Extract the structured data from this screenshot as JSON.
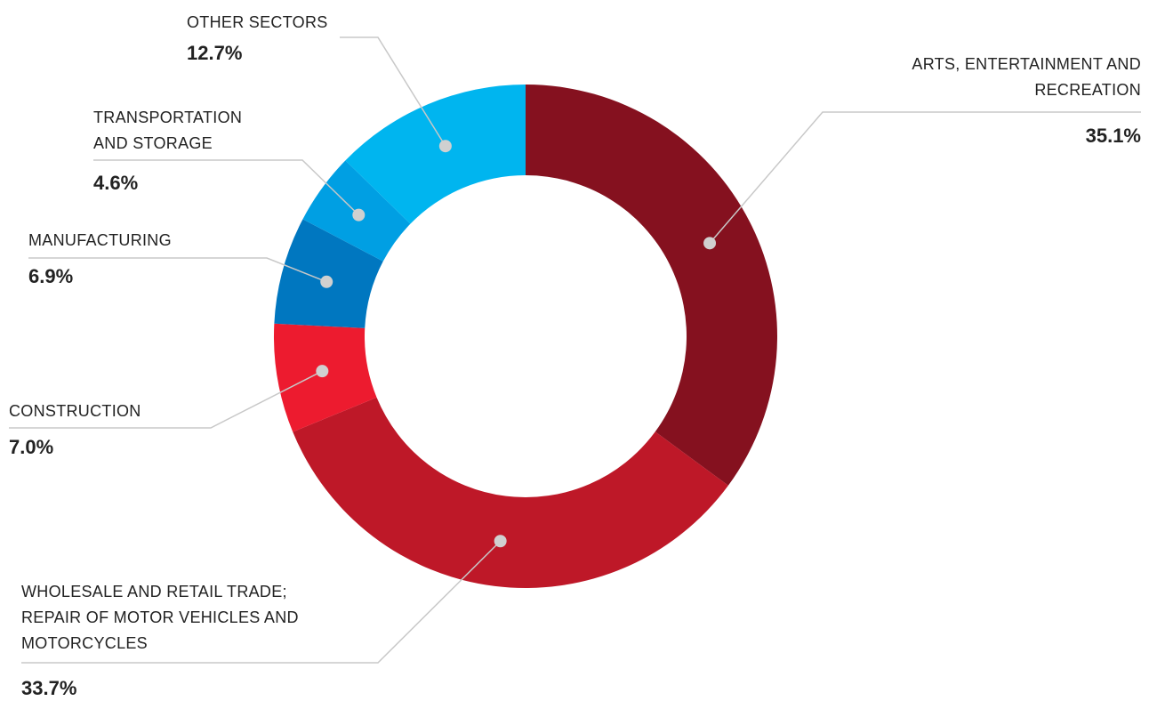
{
  "chart_data": {
    "type": "donut",
    "categories": [
      "ARTS, ENTERTAINMENT AND RECREATION",
      "WHOLESALE AND RETAIL TRADE; REPAIR OF MOTOR VEHICLES AND MOTORCYCLES",
      "CONSTRUCTION",
      "MANUFACTURING",
      "TRANSPORTATION AND STORAGE",
      "OTHER SECTORS"
    ],
    "values": [
      35.1,
      33.7,
      7.0,
      6.9,
      4.6,
      12.7
    ],
    "value_labels": [
      "35.1%",
      "33.7%",
      "7.0%",
      "6.9%",
      "4.6%",
      "12.7%"
    ],
    "colors": [
      "#85111f",
      "#be1828",
      "#ed1b2f",
      "#0077c0",
      "#009fe3",
      "#00b5ef"
    ]
  }
}
